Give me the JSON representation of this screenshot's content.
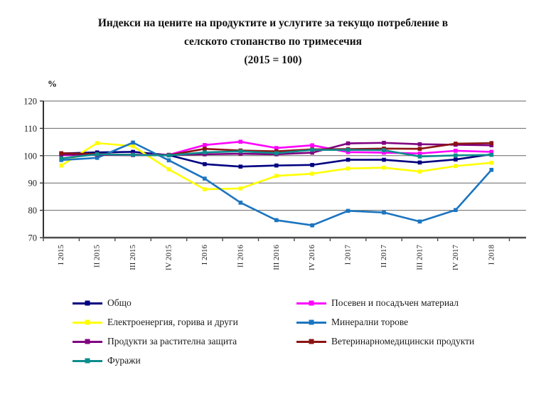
{
  "title": {
    "line1": "Индекси на цените на продуктите и услугите за текущо потребление в",
    "line2": "селското стопанство по тримесечия",
    "line3": "(2015 = 100)"
  },
  "chart_data": {
    "type": "line",
    "title": "Индекси на цените на продуктите и услугите за текущо потребление в селското стопанство по тримесечия (2015 = 100)",
    "ylabel": "%",
    "unit_label": "%",
    "ylim": [
      70,
      120
    ],
    "yticks": [
      70,
      80,
      90,
      100,
      110,
      120
    ],
    "grid": true,
    "legend_position": "bottom",
    "categories": [
      "I 2015",
      "II 2015",
      "III 2015",
      "IV 2015",
      "I 2016",
      "II 2016",
      "III 2016",
      "IV 2016",
      "I 2017",
      "II 2017",
      "III 2017",
      "IV 2017",
      "I 2018"
    ],
    "series": [
      {
        "name": "Общо",
        "color": "#000080",
        "values": [
          100.8,
          101.2,
          101.4,
          100.2,
          96.9,
          96.0,
          96.4,
          96.6,
          98.5,
          98.5,
          97.5,
          98.6,
          100.5
        ]
      },
      {
        "name": "Посевен и посадъчен материал",
        "color": "#FF00FF",
        "values": [
          100.2,
          100.3,
          100.4,
          100.3,
          103.9,
          105.1,
          102.8,
          103.8,
          101.3,
          101.1,
          100.8,
          101.8,
          101.4
        ]
      },
      {
        "name": "Електроенергия, горива и други",
        "color": "#FFFF00",
        "values": [
          96.4,
          104.6,
          103.5,
          95.0,
          87.7,
          88.0,
          92.6,
          93.4,
          95.3,
          95.6,
          94.2,
          96.2,
          97.4
        ]
      },
      {
        "name": "Минерални торове",
        "color": "#1B75C0",
        "values": [
          98.4,
          99.2,
          104.8,
          98.3,
          91.6,
          82.8,
          76.4,
          74.5,
          79.8,
          79.2,
          75.9,
          80.1,
          94.8
        ]
      },
      {
        "name": "Продукти за растителна защита",
        "color": "#800080",
        "values": [
          100.4,
          100.3,
          100.2,
          100.3,
          100.5,
          100.7,
          100.5,
          101.1,
          104.5,
          104.7,
          104.2,
          104.0,
          103.8
        ]
      },
      {
        "name": "Ветеринарномедицински продукти",
        "color": "#8B1414",
        "values": [
          100.9,
          100.6,
          100.3,
          100.2,
          102.5,
          101.9,
          101.6,
          102.3,
          102.4,
          102.6,
          102.5,
          104.4,
          104.6
        ]
      },
      {
        "name": "Фуражи",
        "color": "#0D8C8C",
        "values": [
          99.0,
          100.5,
          100.3,
          100.1,
          101.2,
          101.6,
          100.9,
          102.1,
          102.1,
          102.0,
          99.7,
          100.1,
          100.3
        ]
      }
    ]
  }
}
